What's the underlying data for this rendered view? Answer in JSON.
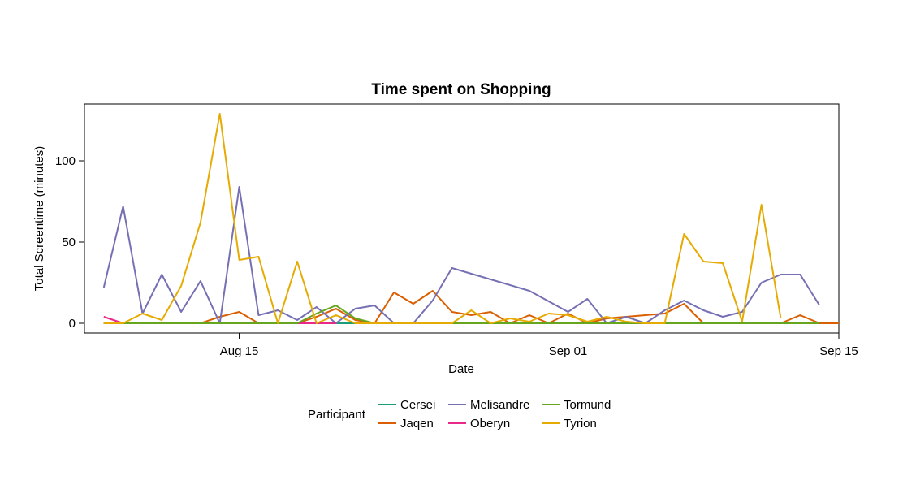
{
  "chart_data": {
    "type": "line",
    "title": "Time spent on Shopping",
    "xlabel": "Date",
    "ylabel": "Total Screentime (minutes)",
    "x_ticks": [
      "2024-08-15",
      "2024-09-01",
      "2024-09-15"
    ],
    "x_tick_labels": [
      "Aug 15",
      "Sep 01",
      "Sep 15"
    ],
    "xlim": [
      "2024-08-07",
      "2024-09-15"
    ],
    "y_ticks": [
      0,
      50,
      100
    ],
    "ylim": [
      -6,
      135
    ],
    "grid": false,
    "legend": {
      "title": "Participant",
      "placement": "bottom",
      "columns": 3
    },
    "series": [
      {
        "name": "Cersei",
        "color": "#1B9E77",
        "points": [
          [
            "2024-08-08",
            0
          ],
          [
            "2024-09-13",
            0
          ]
        ]
      },
      {
        "name": "Jaqen",
        "color": "#D95F02",
        "points": [
          [
            "2024-08-08",
            0
          ],
          [
            "2024-08-09",
            0
          ],
          [
            "2024-08-10",
            0
          ],
          [
            "2024-08-11",
            0
          ],
          [
            "2024-08-12",
            0
          ],
          [
            "2024-08-13",
            0
          ],
          [
            "2024-08-14",
            4
          ],
          [
            "2024-08-15",
            7
          ],
          [
            "2024-08-16",
            0
          ],
          [
            "2024-08-17",
            0
          ],
          [
            "2024-08-18",
            0
          ],
          [
            "2024-08-19",
            4
          ],
          [
            "2024-08-20",
            9
          ],
          [
            "2024-08-21",
            2
          ],
          [
            "2024-08-22",
            0
          ],
          [
            "2024-08-23",
            19
          ],
          [
            "2024-08-24",
            12
          ],
          [
            "2024-08-25",
            20
          ],
          [
            "2024-08-26",
            7
          ],
          [
            "2024-08-27",
            5
          ],
          [
            "2024-08-28",
            7
          ],
          [
            "2024-08-29",
            0
          ],
          [
            "2024-08-30",
            5
          ],
          [
            "2024-08-31",
            0
          ],
          [
            "2024-09-01",
            6
          ],
          [
            "2024-09-02",
            0
          ],
          [
            "2024-09-03",
            3
          ],
          [
            "2024-09-04",
            4
          ],
          [
            "2024-09-05",
            5
          ],
          [
            "2024-09-06",
            6
          ],
          [
            "2024-09-07",
            12
          ],
          [
            "2024-09-08",
            0
          ],
          [
            "2024-09-09",
            0
          ],
          [
            "2024-09-10",
            0
          ],
          [
            "2024-09-11",
            0
          ],
          [
            "2024-09-12",
            0
          ],
          [
            "2024-09-13",
            5
          ],
          [
            "2024-09-14",
            0
          ],
          [
            "2024-09-15",
            0
          ]
        ]
      },
      {
        "name": "Melisandre",
        "color": "#7570B3",
        "points": [
          [
            "2024-08-08",
            22
          ],
          [
            "2024-08-09",
            72
          ],
          [
            "2024-08-10",
            6
          ],
          [
            "2024-08-11",
            30
          ],
          [
            "2024-08-12",
            7
          ],
          [
            "2024-08-13",
            26
          ],
          [
            "2024-08-14",
            0
          ],
          [
            "2024-08-15",
            84
          ],
          [
            "2024-08-16",
            5
          ],
          [
            "2024-08-17",
            8
          ],
          [
            "2024-08-18",
            2
          ],
          [
            "2024-08-19",
            10
          ],
          [
            "2024-08-20",
            0
          ],
          [
            "2024-08-21",
            9
          ],
          [
            "2024-08-22",
            11
          ],
          [
            "2024-08-23",
            0
          ],
          [
            "2024-08-24",
            0
          ],
          [
            "2024-08-25",
            14
          ],
          [
            "2024-08-26",
            34
          ],
          [
            "2024-08-30",
            20
          ],
          [
            "2024-09-01",
            7
          ],
          [
            "2024-09-02",
            15
          ],
          [
            "2024-09-03",
            0
          ],
          [
            "2024-09-04",
            4
          ],
          [
            "2024-09-05",
            0
          ],
          [
            "2024-09-06",
            8
          ],
          [
            "2024-09-07",
            14
          ],
          [
            "2024-09-08",
            8
          ],
          [
            "2024-09-09",
            4
          ],
          [
            "2024-09-10",
            7
          ],
          [
            "2024-09-11",
            25
          ],
          [
            "2024-09-12",
            30
          ],
          [
            "2024-09-13",
            30
          ],
          [
            "2024-09-14",
            11
          ]
        ]
      },
      {
        "name": "Oberyn",
        "color": "#E7298A",
        "points": [
          [
            "2024-08-08",
            4
          ],
          [
            "2024-08-09",
            0
          ],
          [
            "2024-08-18",
            0
          ],
          [
            "2024-08-19",
            0
          ],
          [
            "2024-08-20",
            0
          ]
        ]
      },
      {
        "name": "Tormund",
        "color": "#66A61E",
        "points": [
          [
            "2024-08-08",
            0
          ],
          [
            "2024-08-18",
            0
          ],
          [
            "2024-08-19",
            6
          ],
          [
            "2024-08-20",
            11
          ],
          [
            "2024-08-21",
            3
          ],
          [
            "2024-08-22",
            0
          ],
          [
            "2024-09-14",
            0
          ]
        ]
      },
      {
        "name": "Tyrion",
        "color": "#E6AB02",
        "points": [
          [
            "2024-08-08",
            0
          ],
          [
            "2024-08-09",
            0
          ],
          [
            "2024-08-10",
            6
          ],
          [
            "2024-08-11",
            2
          ],
          [
            "2024-08-12",
            23
          ],
          [
            "2024-08-13",
            62
          ],
          [
            "2024-08-14",
            129
          ],
          [
            "2024-08-15",
            39
          ],
          [
            "2024-08-16",
            41
          ],
          [
            "2024-08-17",
            0
          ],
          [
            "2024-08-18",
            38
          ],
          [
            "2024-08-19",
            0
          ],
          [
            "2024-08-20",
            5
          ],
          [
            "2024-08-21",
            0
          ],
          [
            "2024-08-22",
            0
          ],
          [
            "2024-08-23",
            0
          ],
          [
            "2024-08-24",
            0
          ],
          [
            "2024-08-25",
            0
          ],
          [
            "2024-08-26",
            0
          ],
          [
            "2024-08-27",
            8
          ],
          [
            "2024-08-28",
            0
          ],
          [
            "2024-08-29",
            3
          ],
          [
            "2024-08-30",
            1
          ],
          [
            "2024-08-31",
            6
          ],
          [
            "2024-09-01",
            5
          ],
          [
            "2024-09-02",
            1
          ],
          [
            "2024-09-03",
            4
          ],
          [
            "2024-09-04",
            1
          ],
          [
            "2024-09-05",
            0
          ],
          [
            "2024-09-06",
            0
          ],
          [
            "2024-09-07",
            55
          ],
          [
            "2024-09-08",
            38
          ],
          [
            "2024-09-09",
            37
          ],
          [
            "2024-09-10",
            1
          ],
          [
            "2024-09-11",
            73
          ],
          [
            "2024-09-12",
            3
          ]
        ]
      }
    ]
  }
}
